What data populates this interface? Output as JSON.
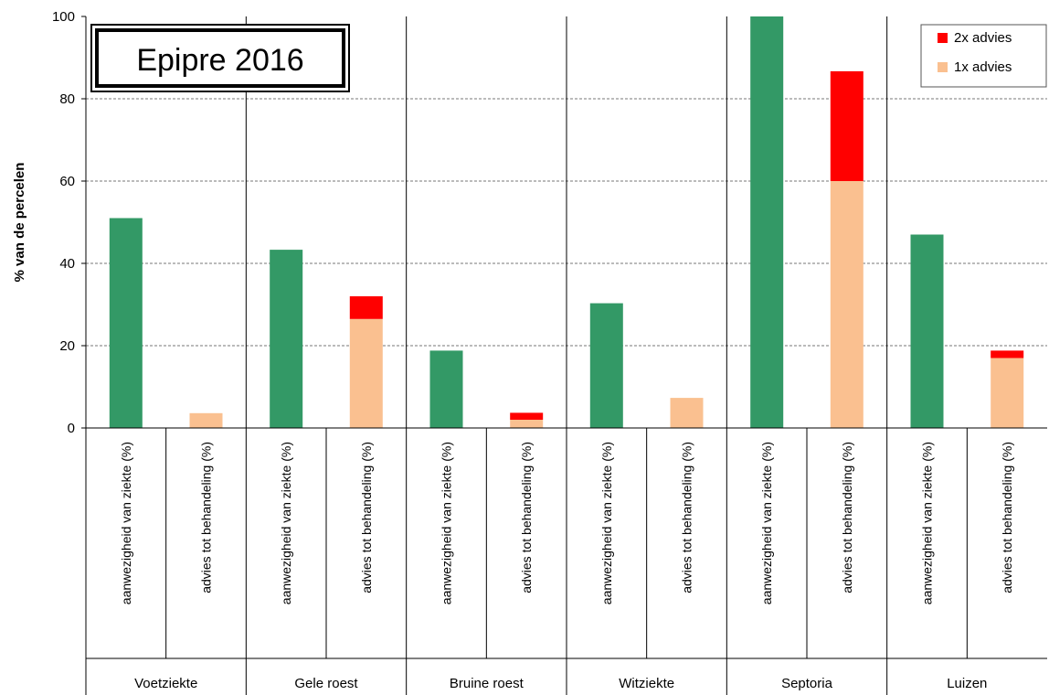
{
  "chart_data": {
    "type": "bar",
    "stacked": true,
    "title": "Epipre 2016",
    "ylabel": "% van de percelen",
    "xlabel": "",
    "ylim": [
      0,
      100
    ],
    "yticks": [
      "0",
      "20",
      "40",
      "60",
      "80",
      "100"
    ],
    "grid": "horizontal dashed",
    "legend_position": "top-right",
    "groups": [
      "Voetziekte",
      "Gele roest",
      "Bruine roest",
      "Witziekte",
      "Septoria",
      "Luizen"
    ],
    "categories": [
      "aanwezigheid van ziekte (%)",
      "advies tot behandeling (%)",
      "aanwezigheid van ziekte (%)",
      "advies tot behandeling (%)",
      "aanwezigheid van ziekte (%)",
      "advies tot behandeling (%)",
      "aanwezigheid van ziekte (%)",
      "advies tot behandeling (%)",
      "aanwezigheid van ziekte (%)",
      "advies tot behandeling (%)",
      "aanwezigheid van ziekte (%)",
      "advies tot behandeling (%)"
    ],
    "series": [
      {
        "key": "aanwezigheid",
        "color": "#339966",
        "values": [
          51,
          0,
          43.3,
          0,
          18.8,
          0,
          30.3,
          0,
          100,
          0,
          47,
          0
        ]
      },
      {
        "key": "1x",
        "name": "1x advies",
        "color": "#FAC090",
        "values": [
          0,
          3.6,
          0,
          26.5,
          0,
          2,
          0,
          7.3,
          0,
          60,
          0,
          17
        ]
      },
      {
        "key": "2x",
        "name": "2x advies",
        "color": "#FF0000",
        "values": [
          0,
          0,
          0,
          5.5,
          0,
          1.7,
          0,
          0,
          0,
          26.7,
          0,
          1.8
        ]
      }
    ],
    "legend": [
      {
        "label": "2x advies",
        "color": "#FF0000"
      },
      {
        "label": "1x advies",
        "color": "#FAC090"
      }
    ]
  }
}
